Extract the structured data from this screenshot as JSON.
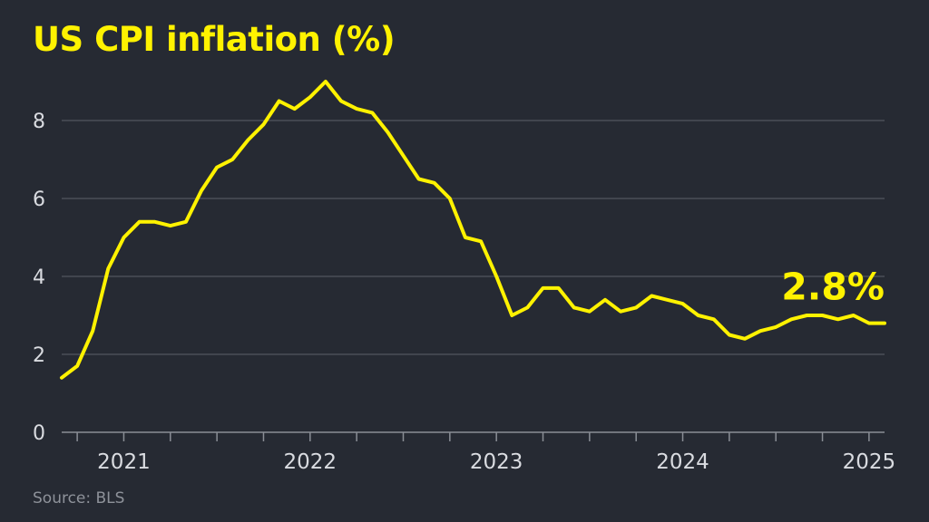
{
  "source": "Source: BLS",
  "chart_data": {
    "type": "line",
    "title": "US CPI inflation (%)",
    "xlabel": "",
    "ylabel": "",
    "ylim": [
      0,
      9
    ],
    "yticks": [
      0,
      2,
      4,
      6,
      8
    ],
    "xlim": [
      "2020-09",
      "2025-02"
    ],
    "xticks": [
      {
        "label": "2021",
        "x": "2021-01"
      },
      {
        "label": "2022",
        "x": "2022-01"
      },
      {
        "label": "2023",
        "x": "2023-01"
      },
      {
        "label": "2024",
        "x": "2024-01"
      },
      {
        "label": "2025",
        "x": "2025-01"
      }
    ],
    "grid": true,
    "colors": {
      "line": "#fff200",
      "background": "#262a33",
      "grid": "#5c606a"
    },
    "series": [
      {
        "x": [
          "2020-09",
          "2020-10",
          "2020-11",
          "2020-12",
          "2021-01",
          "2021-02",
          "2021-03",
          "2021-04",
          "2021-05",
          "2021-06",
          "2021-07",
          "2021-08",
          "2021-09",
          "2021-10",
          "2021-11",
          "2021-12",
          "2022-01",
          "2022-02",
          "2022-03",
          "2022-04",
          "2022-05",
          "2022-06",
          "2022-07",
          "2022-08",
          "2022-09",
          "2022-10",
          "2022-11",
          "2022-12",
          "2023-01",
          "2023-02",
          "2023-03",
          "2023-04",
          "2023-05",
          "2023-06",
          "2023-07",
          "2023-08",
          "2023-09",
          "2023-10",
          "2023-11",
          "2023-12",
          "2024-01",
          "2024-02",
          "2024-03",
          "2024-04",
          "2024-05",
          "2024-06",
          "2024-07",
          "2024-08",
          "2024-09",
          "2024-10",
          "2024-11",
          "2024-12",
          "2025-01",
          "2025-02"
        ],
        "values": [
          1.4,
          1.7,
          2.6,
          4.2,
          5.0,
          5.4,
          5.4,
          5.3,
          5.4,
          6.2,
          6.8,
          7.0,
          7.5,
          7.9,
          8.5,
          8.3,
          8.6,
          9.0,
          8.5,
          8.3,
          8.2,
          7.7,
          7.1,
          6.5,
          6.4,
          6.0,
          5.0,
          4.9,
          4.0,
          3.0,
          3.2,
          3.7,
          3.7,
          3.2,
          3.1,
          3.4,
          3.1,
          3.2,
          3.5,
          3.4,
          3.3,
          3.0,
          2.9,
          2.5,
          2.4,
          2.6,
          2.7,
          2.9,
          3.0,
          3.0,
          2.9,
          3.0,
          2.8,
          2.8
        ],
        "end_label": "2.8%"
      }
    ]
  }
}
